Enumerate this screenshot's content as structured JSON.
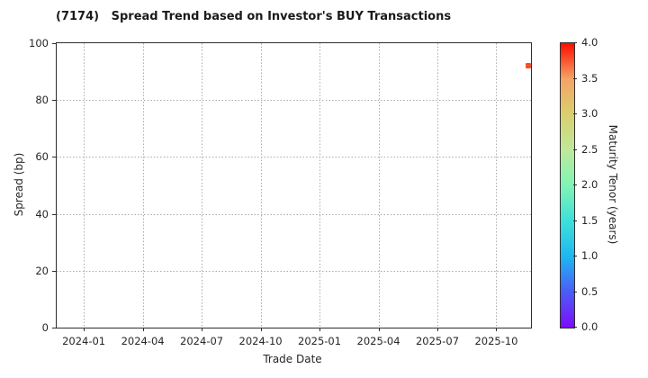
{
  "title": "(7174)   Spread Trend based on Investor's BUY Transactions",
  "chart_data": {
    "type": "scatter",
    "title": "(7174)   Spread Trend based on Investor's BUY Transactions",
    "xlabel": "Trade Date",
    "ylabel": "Spread (bp)",
    "colorbar_label": "Maturity Tenor (years)",
    "x_tick_labels": [
      "2024-01",
      "2024-04",
      "2024-07",
      "2024-10",
      "2025-01",
      "2025-04",
      "2025-07",
      "2025-10"
    ],
    "x_tick_values": [
      2024.0,
      2024.25,
      2024.5,
      2024.75,
      2025.0,
      2025.25,
      2025.5,
      2025.75
    ],
    "xlim": [
      2023.885,
      2025.897
    ],
    "y_ticks": [
      0,
      20,
      40,
      60,
      80,
      100
    ],
    "ylim": [
      0,
      100
    ],
    "grid": true,
    "grid_style": "dotted",
    "legend_position": "none",
    "colorbar": {
      "range": [
        0.0,
        4.0
      ],
      "tick_labels": [
        "0.0",
        "0.5",
        "1.0",
        "1.5",
        "2.0",
        "2.5",
        "3.0",
        "3.5",
        "4.0"
      ],
      "tick_values": [
        0.0,
        0.5,
        1.0,
        1.5,
        2.0,
        2.5,
        3.0,
        3.5,
        4.0
      ],
      "gradient": [
        {
          "value": 0.0,
          "color": "#7d0dfa"
        },
        {
          "value": 0.5,
          "color": "#4b5cf7"
        },
        {
          "value": 1.0,
          "color": "#1eb7f2"
        },
        {
          "value": 1.5,
          "color": "#3fdfd9"
        },
        {
          "value": 2.0,
          "color": "#80f5b5"
        },
        {
          "value": 2.5,
          "color": "#bfe89b"
        },
        {
          "value": 3.0,
          "color": "#d9d06e"
        },
        {
          "value": 3.5,
          "color": "#f6a266"
        },
        {
          "value": 4.0,
          "color": "#fb0d00"
        }
      ]
    },
    "points": [
      {
        "trade_date": "2025-11",
        "x": 2025.886,
        "spread_bp": 92,
        "maturity_tenor_years": 3.6,
        "color": "#f4512a"
      }
    ],
    "colors": {
      "text": "#262626",
      "spine": "#2e2e2e",
      "grid": "#ababab",
      "marker": "#f4512a",
      "background": "#ffffff"
    }
  }
}
